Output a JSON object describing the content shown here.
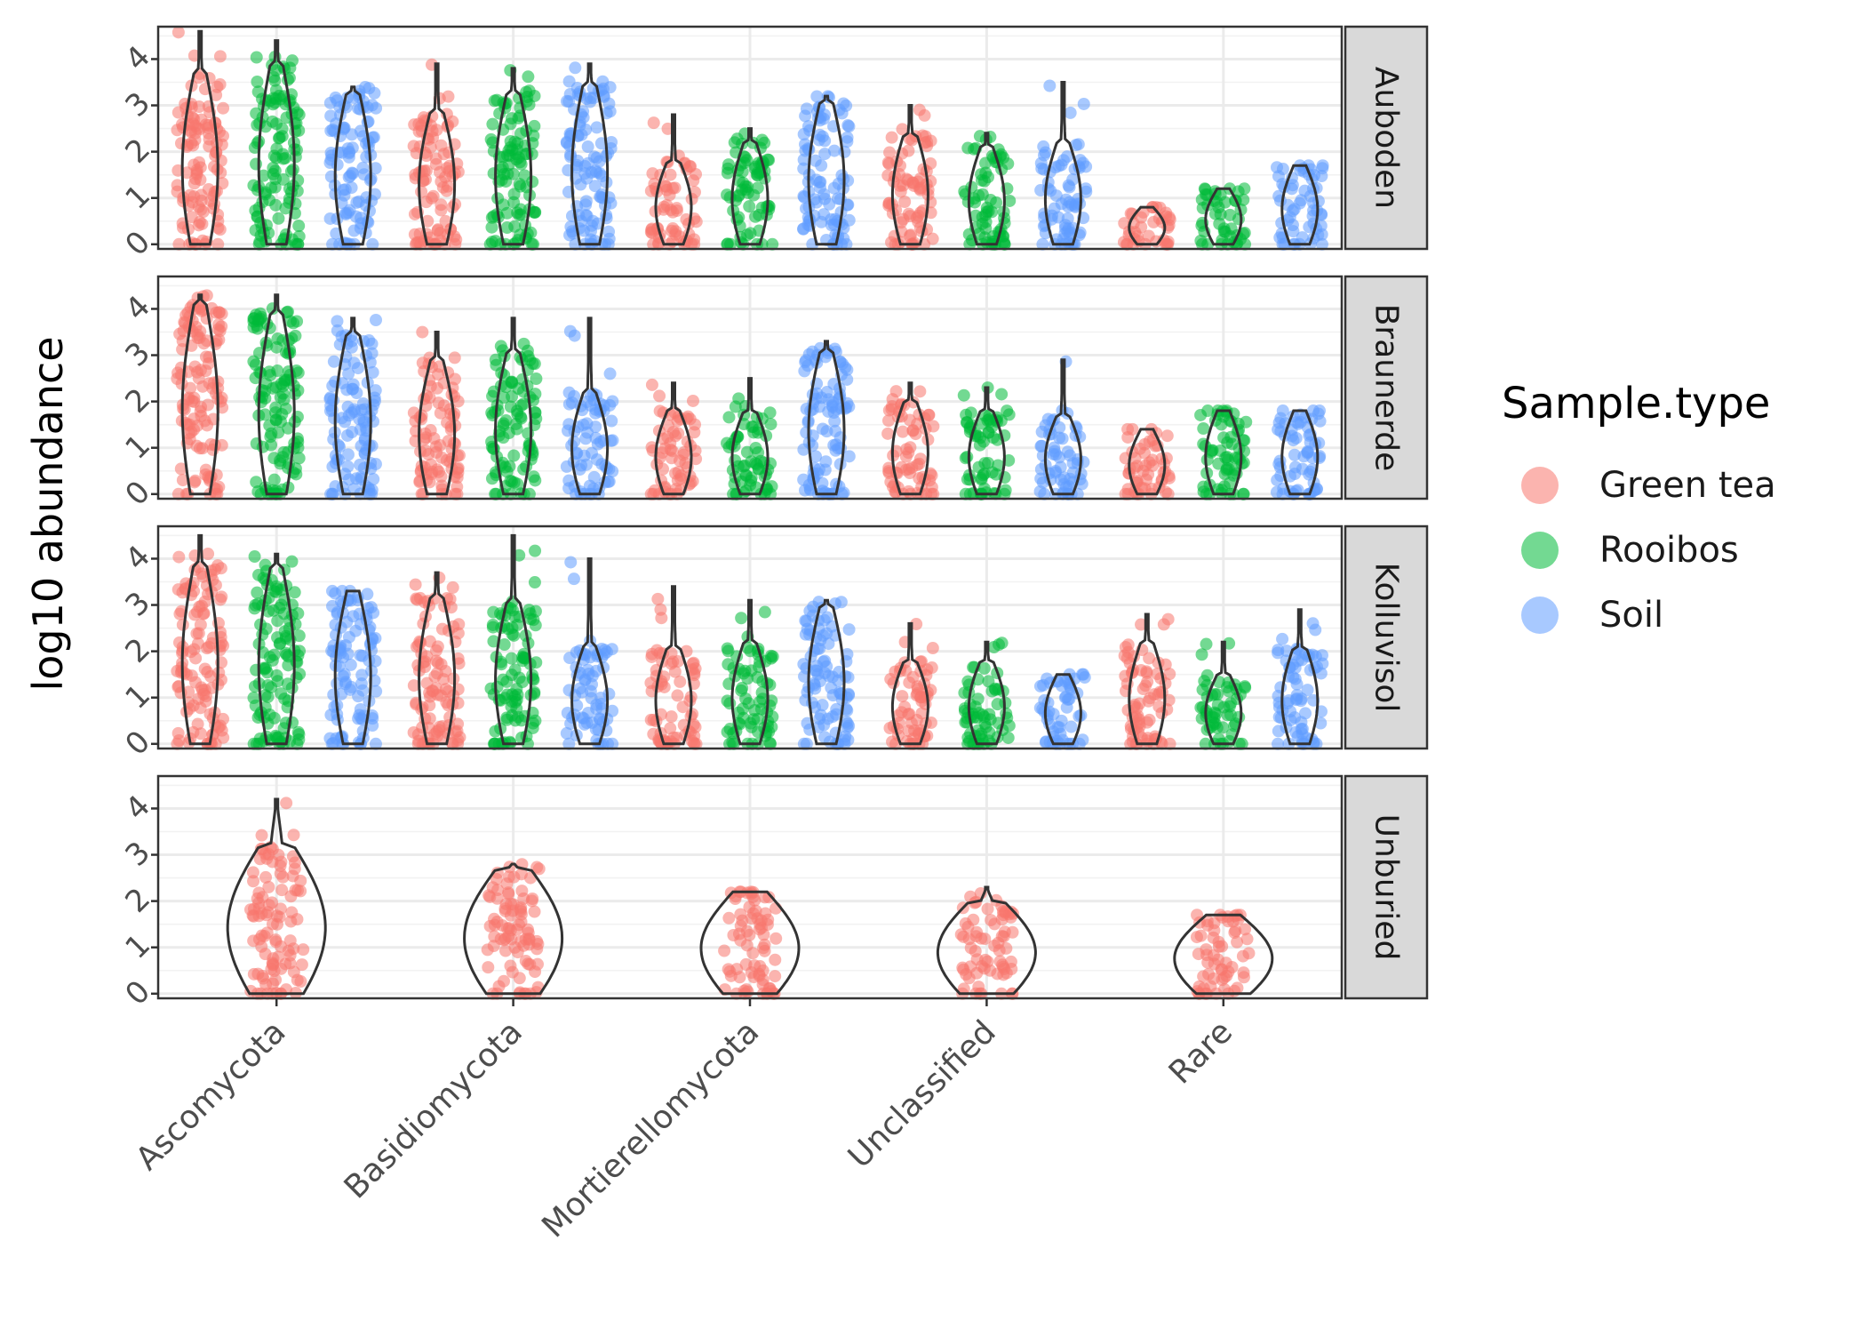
{
  "chart_data": {
    "type": "violin",
    "ylabel": "log10 abundance",
    "xlabel": "",
    "categories": [
      "Ascomycota",
      "Basidiomycota",
      "Mortierellomycota",
      "Unclassified",
      "Rare"
    ],
    "y_ticks": [
      "0",
      "1",
      "2",
      "3",
      "4"
    ],
    "ylim": [
      -0.1,
      4.7
    ],
    "legend": {
      "title": "Sample.type",
      "position": "right",
      "entries": [
        {
          "name": "Green tea",
          "color": "#F8766D"
        },
        {
          "name": "Rooibos",
          "color": "#00BA38"
        },
        {
          "name": "Soil",
          "color": "#619CFF"
        }
      ]
    },
    "facets": [
      {
        "label": "Auboden",
        "groups": [
          {
            "category": "Ascomycota",
            "series": "Green tea",
            "min": 0,
            "max": 4.6,
            "bulk_max": 3.7
          },
          {
            "category": "Ascomycota",
            "series": "Rooibos",
            "min": 0,
            "max": 4.4,
            "bulk_max": 3.9
          },
          {
            "category": "Ascomycota",
            "series": "Soil",
            "min": 0,
            "max": 3.4,
            "bulk_max": 3.3
          },
          {
            "category": "Basidiomycota",
            "series": "Green tea",
            "min": 0,
            "max": 3.9,
            "bulk_max": 2.9
          },
          {
            "category": "Basidiomycota",
            "series": "Rooibos",
            "min": 0,
            "max": 3.8,
            "bulk_max": 3.3
          },
          {
            "category": "Basidiomycota",
            "series": "Soil",
            "min": 0,
            "max": 3.9,
            "bulk_max": 3.5
          },
          {
            "category": "Mortierellomycota",
            "series": "Green tea",
            "min": 0,
            "max": 2.8,
            "bulk_max": 1.8
          },
          {
            "category": "Mortierellomycota",
            "series": "Rooibos",
            "min": 0,
            "max": 2.5,
            "bulk_max": 2.2
          },
          {
            "category": "Mortierellomycota",
            "series": "Soil",
            "min": 0,
            "max": 3.2,
            "bulk_max": 3.1
          },
          {
            "category": "Unclassified",
            "series": "Green tea",
            "min": 0,
            "max": 3.0,
            "bulk_max": 2.4
          },
          {
            "category": "Unclassified",
            "series": "Rooibos",
            "min": 0,
            "max": 2.4,
            "bulk_max": 2.1
          },
          {
            "category": "Unclassified",
            "series": "Soil",
            "min": 0,
            "max": 3.5,
            "bulk_max": 2.2
          },
          {
            "category": "Rare",
            "series": "Green tea",
            "min": 0,
            "max": 0.8,
            "bulk_max": 0.8
          },
          {
            "category": "Rare",
            "series": "Rooibos",
            "min": 0,
            "max": 1.2,
            "bulk_max": 1.2
          },
          {
            "category": "Rare",
            "series": "Soil",
            "min": 0,
            "max": 1.7,
            "bulk_max": 1.7
          }
        ]
      },
      {
        "label": "Braunerde",
        "groups": [
          {
            "category": "Ascomycota",
            "series": "Green tea",
            "min": 0,
            "max": 4.3,
            "bulk_max": 4.1
          },
          {
            "category": "Ascomycota",
            "series": "Rooibos",
            "min": 0,
            "max": 4.3,
            "bulk_max": 3.9
          },
          {
            "category": "Ascomycota",
            "series": "Soil",
            "min": 0,
            "max": 3.8,
            "bulk_max": 3.5
          },
          {
            "category": "Basidiomycota",
            "series": "Green tea",
            "min": 0,
            "max": 3.5,
            "bulk_max": 2.9
          },
          {
            "category": "Basidiomycota",
            "series": "Rooibos",
            "min": 0,
            "max": 3.8,
            "bulk_max": 3.1
          },
          {
            "category": "Basidiomycota",
            "series": "Soil",
            "min": 0,
            "max": 3.8,
            "bulk_max": 2.2
          },
          {
            "category": "Mortierellomycota",
            "series": "Green tea",
            "min": 0,
            "max": 2.4,
            "bulk_max": 1.8
          },
          {
            "category": "Mortierellomycota",
            "series": "Rooibos",
            "min": 0,
            "max": 2.5,
            "bulk_max": 1.8
          },
          {
            "category": "Mortierellomycota",
            "series": "Soil",
            "min": 0,
            "max": 3.3,
            "bulk_max": 3.1
          },
          {
            "category": "Unclassified",
            "series": "Green tea",
            "min": 0,
            "max": 2.4,
            "bulk_max": 2.0
          },
          {
            "category": "Unclassified",
            "series": "Rooibos",
            "min": 0,
            "max": 2.3,
            "bulk_max": 1.8
          },
          {
            "category": "Unclassified",
            "series": "Soil",
            "min": 0,
            "max": 2.9,
            "bulk_max": 1.7
          },
          {
            "category": "Rare",
            "series": "Green tea",
            "min": 0,
            "max": 1.4,
            "bulk_max": 1.4
          },
          {
            "category": "Rare",
            "series": "Rooibos",
            "min": 0,
            "max": 1.8,
            "bulk_max": 1.8
          },
          {
            "category": "Rare",
            "series": "Soil",
            "min": 0,
            "max": 1.8,
            "bulk_max": 1.8
          }
        ]
      },
      {
        "label": "Kolluvisol",
        "groups": [
          {
            "category": "Ascomycota",
            "series": "Green tea",
            "min": 0,
            "max": 4.5,
            "bulk_max": 3.9
          },
          {
            "category": "Ascomycota",
            "series": "Rooibos",
            "min": 0,
            "max": 4.1,
            "bulk_max": 3.8
          },
          {
            "category": "Ascomycota",
            "series": "Soil",
            "min": 0,
            "max": 3.3,
            "bulk_max": 3.3
          },
          {
            "category": "Basidiomycota",
            "series": "Green tea",
            "min": 0,
            "max": 3.7,
            "bulk_max": 3.2
          },
          {
            "category": "Basidiomycota",
            "series": "Rooibos",
            "min": 0,
            "max": 4.5,
            "bulk_max": 3.1
          },
          {
            "category": "Basidiomycota",
            "series": "Soil",
            "min": 0,
            "max": 4.0,
            "bulk_max": 2.1
          },
          {
            "category": "Mortierellomycota",
            "series": "Green tea",
            "min": 0,
            "max": 3.4,
            "bulk_max": 2.1
          },
          {
            "category": "Mortierellomycota",
            "series": "Rooibos",
            "min": 0,
            "max": 3.1,
            "bulk_max": 2.2
          },
          {
            "category": "Mortierellomycota",
            "series": "Soil",
            "min": 0,
            "max": 3.1,
            "bulk_max": 3.0
          },
          {
            "category": "Unclassified",
            "series": "Green tea",
            "min": 0,
            "max": 2.6,
            "bulk_max": 1.8
          },
          {
            "category": "Unclassified",
            "series": "Rooibos",
            "min": 0,
            "max": 2.2,
            "bulk_max": 1.8
          },
          {
            "category": "Unclassified",
            "series": "Soil",
            "min": 0,
            "max": 1.5,
            "bulk_max": 1.5
          },
          {
            "category": "Rare",
            "series": "Green tea",
            "min": 0,
            "max": 2.8,
            "bulk_max": 2.2
          },
          {
            "category": "Rare",
            "series": "Rooibos",
            "min": 0,
            "max": 2.2,
            "bulk_max": 1.5
          },
          {
            "category": "Rare",
            "series": "Soil",
            "min": 0,
            "max": 2.9,
            "bulk_max": 2.1
          }
        ]
      },
      {
        "label": "Unburied",
        "groups": [
          {
            "category": "Ascomycota",
            "series": "Green tea",
            "min": 0,
            "max": 4.2,
            "bulk_max": 3.2
          },
          {
            "category": "Basidiomycota",
            "series": "Green tea",
            "min": 0,
            "max": 2.8,
            "bulk_max": 2.7
          },
          {
            "category": "Mortierellomycota",
            "series": "Green tea",
            "min": 0,
            "max": 2.2,
            "bulk_max": 2.2
          },
          {
            "category": "Unclassified",
            "series": "Green tea",
            "min": 0,
            "max": 2.3,
            "bulk_max": 2.0
          },
          {
            "category": "Rare",
            "series": "Green tea",
            "min": 0,
            "max": 1.7,
            "bulk_max": 1.7
          }
        ]
      }
    ]
  }
}
